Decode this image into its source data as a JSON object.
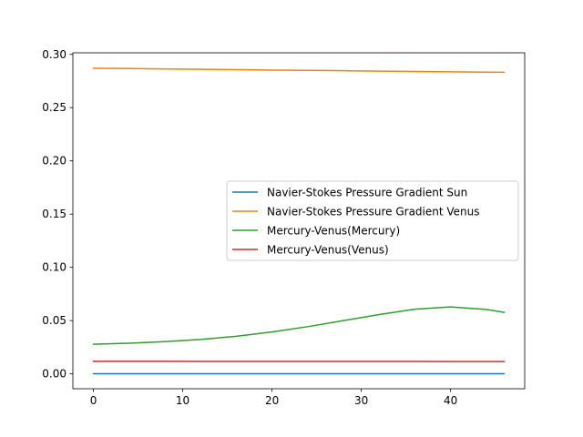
{
  "chart_data": {
    "type": "line",
    "title": "",
    "xlabel": "",
    "ylabel": "",
    "xlim": [
      -2.3,
      48.3
    ],
    "ylim": [
      -0.014,
      0.3015
    ],
    "x_ticks": [
      0,
      10,
      20,
      30,
      40
    ],
    "x_tick_labels": [
      "0",
      "10",
      "20",
      "30",
      "40"
    ],
    "y_ticks": [
      0.0,
      0.05,
      0.1,
      0.15,
      0.2,
      0.25,
      0.3
    ],
    "y_tick_labels": [
      "0.00",
      "0.05",
      "0.10",
      "0.15",
      "0.20",
      "0.25",
      "0.30"
    ],
    "grid": false,
    "legend_position": "center-right",
    "x": [
      0,
      4,
      8,
      12,
      16,
      20,
      24,
      28,
      32,
      36,
      40,
      44,
      46
    ],
    "series": [
      {
        "name": "Navier-Stokes Pressure Gradient Sun",
        "color": "#1f77b4",
        "values": [
          0.0001,
          0.0001,
          0.0001,
          0.0001,
          0.0001,
          0.0001,
          0.0001,
          0.0001,
          0.0001,
          0.0001,
          0.0001,
          0.0001,
          0.0001
        ]
      },
      {
        "name": "Navier-Stokes Pressure Gradient Venus",
        "color": "#ff7f0e",
        "values": [
          0.287,
          0.2867,
          0.2863,
          0.286,
          0.2857,
          0.2853,
          0.285,
          0.2847,
          0.2843,
          0.284,
          0.2837,
          0.2833,
          0.2832
        ]
      },
      {
        "name": "Mercury-Venus(Mercury)",
        "color": "#2ca02c",
        "values": [
          0.0278,
          0.0288,
          0.0302,
          0.0323,
          0.0353,
          0.0393,
          0.0443,
          0.05,
          0.0557,
          0.0607,
          0.0628,
          0.0605,
          0.0577
        ]
      },
      {
        "name": "Mercury-Venus(Venus)",
        "color": "#d62728",
        "values": [
          0.0118,
          0.0118,
          0.0118,
          0.0117,
          0.0117,
          0.0117,
          0.0117,
          0.0116,
          0.0116,
          0.0116,
          0.0115,
          0.0115,
          0.0115
        ]
      }
    ]
  }
}
